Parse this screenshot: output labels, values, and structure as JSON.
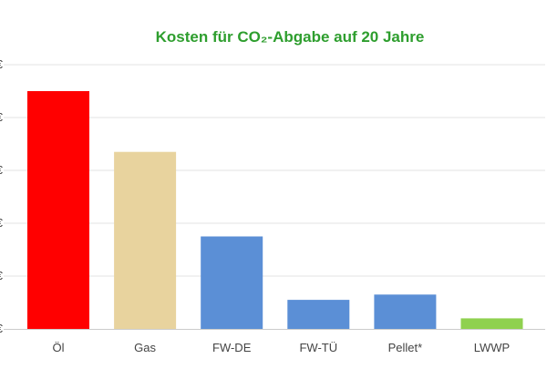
{
  "chart_data": {
    "type": "bar",
    "title": "Kosten für CO₂-Abgabe auf 20 Jahre",
    "categories": [
      "Öl",
      "Gas",
      "FW-DE",
      "FW-TÜ",
      "Pellet*",
      "LWWP"
    ],
    "values": [
      9000,
      6700,
      3500,
      1100,
      1300,
      400
    ],
    "ylim": [
      0,
      10000
    ],
    "yticks": [
      0,
      2000,
      4000,
      6000,
      8000,
      10000
    ],
    "y_tick_labels": [
      "€",
      "€",
      "€",
      "€",
      "€",
      "€"
    ],
    "bar_colors": [
      "#ff0000",
      "#e8d39e",
      "#5b8fd6",
      "#5b8fd6",
      "#5b8fd6",
      "#8fd14f"
    ],
    "title_color": "#2e9e2e",
    "grid": true,
    "legend": "none"
  }
}
